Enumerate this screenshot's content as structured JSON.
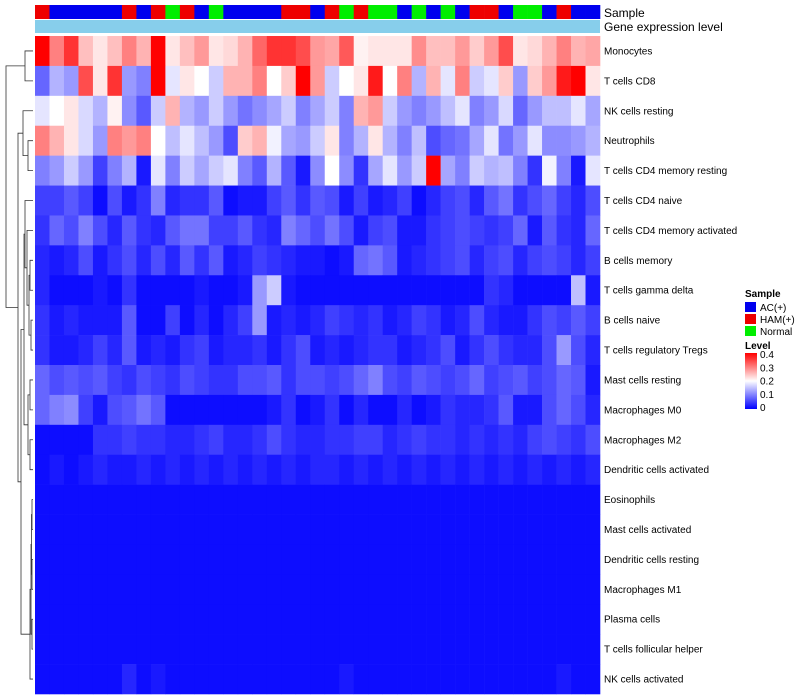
{
  "chart_data": {
    "type": "heatmap",
    "title": "",
    "annotations": {
      "sample_label": "Sample",
      "gene_label": "Gene expression level"
    },
    "samples": [
      "HAM(+)",
      "AC(+)",
      "AC(+)",
      "AC(+)",
      "AC(+)",
      "AC(+)",
      "HAM(+)",
      "AC(+)",
      "HAM(+)",
      "Normal",
      "HAM(+)",
      "AC(+)",
      "Normal",
      "AC(+)",
      "AC(+)",
      "AC(+)",
      "AC(+)",
      "HAM(+)",
      "HAM(+)",
      "AC(+)",
      "HAM(+)",
      "Normal",
      "HAM(+)",
      "Normal",
      "Normal",
      "AC(+)",
      "Normal",
      "AC(+)",
      "Normal",
      "AC(+)",
      "HAM(+)",
      "HAM(+)",
      "AC(+)",
      "Normal",
      "Normal",
      "AC(+)",
      "HAM(+)",
      "AC(+)",
      "AC(+)"
    ],
    "rows": [
      "Monocytes",
      "T cells CD8",
      "NK cells resting",
      "Neutrophils",
      "T cells CD4 memory resting",
      "T cells CD4 naive",
      "T cells CD4 memory activated",
      "B cells memory",
      "T cells gamma delta",
      "B cells naive",
      "T cells regulatory  Tregs",
      "Mast cells resting",
      "Macrophages M0",
      "Macrophages M2",
      "Dendritic cells activated",
      "Eosinophils",
      "Mast cells activated",
      "Dendritic cells resting",
      "Macrophages M1",
      "Plasma cells",
      "T cells follicular helper",
      "NK cells activated"
    ],
    "values": [
      [
        0.4,
        0.3,
        0.36,
        0.25,
        0.22,
        0.25,
        0.3,
        0.26,
        0.4,
        0.22,
        0.25,
        0.28,
        0.22,
        0.23,
        0.26,
        0.32,
        0.36,
        0.36,
        0.34,
        0.28,
        0.27,
        0.33,
        0.21,
        0.22,
        0.22,
        0.22,
        0.29,
        0.25,
        0.25,
        0.28,
        0.24,
        0.28,
        0.34,
        0.22,
        0.23,
        0.26,
        0.3,
        0.26,
        0.27
      ],
      [
        0.08,
        0.14,
        0.12,
        0.34,
        0.22,
        0.36,
        0.12,
        0.1,
        0.4,
        0.18,
        0.22,
        0.2,
        0.16,
        0.26,
        0.26,
        0.3,
        0.2,
        0.24,
        0.42,
        0.28,
        0.16,
        0.2,
        0.22,
        0.38,
        0.2,
        0.3,
        0.14,
        0.26,
        0.18,
        0.3,
        0.16,
        0.18,
        0.24,
        0.12,
        0.24,
        0.28,
        0.38,
        0.42,
        0.22
      ],
      [
        0.18,
        0.2,
        0.22,
        0.17,
        0.14,
        0.21,
        0.11,
        0.07,
        0.16,
        0.26,
        0.14,
        0.12,
        0.16,
        0.12,
        0.09,
        0.11,
        0.13,
        0.16,
        0.1,
        0.13,
        0.16,
        0.1,
        0.26,
        0.28,
        0.16,
        0.12,
        0.1,
        0.12,
        0.15,
        0.18,
        0.1,
        0.12,
        0.17,
        0.08,
        0.12,
        0.15,
        0.15,
        0.18,
        0.13
      ],
      [
        0.3,
        0.26,
        0.22,
        0.17,
        0.12,
        0.3,
        0.28,
        0.3,
        0.2,
        0.15,
        0.18,
        0.15,
        0.12,
        0.06,
        0.24,
        0.26,
        0.19,
        0.13,
        0.12,
        0.16,
        0.22,
        0.1,
        0.14,
        0.22,
        0.14,
        0.1,
        0.15,
        0.06,
        0.08,
        0.09,
        0.13,
        0.18,
        0.09,
        0.12,
        0.18,
        0.11,
        0.11,
        0.12,
        0.14
      ],
      [
        0.1,
        0.12,
        0.16,
        0.12,
        0.05,
        0.1,
        0.14,
        0.02,
        0.18,
        0.1,
        0.16,
        0.13,
        0.16,
        0.18,
        0.1,
        0.07,
        0.14,
        0.07,
        0.02,
        0.11,
        0.2,
        0.11,
        0.04,
        0.13,
        0.18,
        0.12,
        0.16,
        0.4,
        0.13,
        0.1,
        0.16,
        0.14,
        0.15,
        0.1,
        0.04,
        0.19,
        0.1,
        0.02,
        0.18
      ],
      [
        0.05,
        0.05,
        0.07,
        0.05,
        0.01,
        0.06,
        0.02,
        0.04,
        0.1,
        0.03,
        0.04,
        0.04,
        0.07,
        0.01,
        0.02,
        0.02,
        0.05,
        0.07,
        0.04,
        0.07,
        0.06,
        0.02,
        0.05,
        0.02,
        0.03,
        0.05,
        0.01,
        0.03,
        0.05,
        0.06,
        0.03,
        0.07,
        0.09,
        0.04,
        0.06,
        0.08,
        0.05,
        0.03,
        0.06
      ],
      [
        0.04,
        0.08,
        0.06,
        0.1,
        0.06,
        0.03,
        0.07,
        0.04,
        0.03,
        0.07,
        0.09,
        0.09,
        0.05,
        0.05,
        0.07,
        0.04,
        0.03,
        0.1,
        0.08,
        0.06,
        0.09,
        0.06,
        0.02,
        0.05,
        0.06,
        0.02,
        0.02,
        0.04,
        0.05,
        0.06,
        0.05,
        0.04,
        0.05,
        0.08,
        0.02,
        0.07,
        0.04,
        0.03,
        0.08
      ],
      [
        0.03,
        0.02,
        0.03,
        0.06,
        0.02,
        0.04,
        0.06,
        0.03,
        0.06,
        0.03,
        0.07,
        0.04,
        0.07,
        0.02,
        0.03,
        0.05,
        0.04,
        0.03,
        0.02,
        0.02,
        0.01,
        0.02,
        0.08,
        0.09,
        0.07,
        0.02,
        0.03,
        0.04,
        0.05,
        0.06,
        0.03,
        0.05,
        0.06,
        0.03,
        0.05,
        0.06,
        0.05,
        0.03,
        0.05
      ],
      [
        0.03,
        0.01,
        0.01,
        0.01,
        0.02,
        0.01,
        0.04,
        0.01,
        0.01,
        0.01,
        0.01,
        0.02,
        0.01,
        0.01,
        0.02,
        0.12,
        0.16,
        0.02,
        0.01,
        0.01,
        0.01,
        0.01,
        0.01,
        0.01,
        0.01,
        0.01,
        0.01,
        0.01,
        0.01,
        0.01,
        0.01,
        0.04,
        0.03,
        0.01,
        0.01,
        0.01,
        0.01,
        0.15,
        0.02
      ],
      [
        0.04,
        0.02,
        0.03,
        0.02,
        0.02,
        0.02,
        0.07,
        0.01,
        0.01,
        0.05,
        0.01,
        0.03,
        0.01,
        0.03,
        0.05,
        0.12,
        0.02,
        0.03,
        0.02,
        0.03,
        0.05,
        0.04,
        0.03,
        0.04,
        0.02,
        0.03,
        0.05,
        0.04,
        0.02,
        0.03,
        0.06,
        0.03,
        0.02,
        0.02,
        0.04,
        0.06,
        0.05,
        0.07,
        0.05
      ],
      [
        0.04,
        0.02,
        0.02,
        0.03,
        0.05,
        0.03,
        0.07,
        0.02,
        0.03,
        0.02,
        0.04,
        0.05,
        0.02,
        0.03,
        0.03,
        0.04,
        0.02,
        0.04,
        0.06,
        0.02,
        0.03,
        0.02,
        0.03,
        0.04,
        0.04,
        0.02,
        0.03,
        0.04,
        0.06,
        0.02,
        0.04,
        0.06,
        0.04,
        0.03,
        0.03,
        0.06,
        0.12,
        0.06,
        0.03
      ],
      [
        0.08,
        0.06,
        0.07,
        0.06,
        0.07,
        0.05,
        0.04,
        0.06,
        0.05,
        0.04,
        0.06,
        0.05,
        0.04,
        0.04,
        0.06,
        0.06,
        0.07,
        0.04,
        0.06,
        0.06,
        0.05,
        0.06,
        0.08,
        0.1,
        0.06,
        0.05,
        0.07,
        0.06,
        0.05,
        0.06,
        0.08,
        0.05,
        0.06,
        0.07,
        0.05,
        0.06,
        0.08,
        0.07,
        0.02
      ],
      [
        0.08,
        0.1,
        0.11,
        0.05,
        0.02,
        0.06,
        0.07,
        0.09,
        0.07,
        0.01,
        0.01,
        0.01,
        0.01,
        0.01,
        0.01,
        0.01,
        0.02,
        0.04,
        0.01,
        0.02,
        0.04,
        0.01,
        0.03,
        0.01,
        0.01,
        0.03,
        0.01,
        0.02,
        0.04,
        0.03,
        0.03,
        0.04,
        0.07,
        0.02,
        0.02,
        0.06,
        0.08,
        0.06,
        0.03
      ],
      [
        0.01,
        0.01,
        0.01,
        0.01,
        0.04,
        0.04,
        0.05,
        0.04,
        0.04,
        0.03,
        0.03,
        0.04,
        0.05,
        0.03,
        0.03,
        0.04,
        0.06,
        0.04,
        0.03,
        0.03,
        0.04,
        0.04,
        0.05,
        0.05,
        0.03,
        0.04,
        0.05,
        0.04,
        0.04,
        0.03,
        0.04,
        0.03,
        0.04,
        0.03,
        0.05,
        0.06,
        0.05,
        0.04,
        0.06
      ],
      [
        0.01,
        0.02,
        0.01,
        0.02,
        0.03,
        0.02,
        0.02,
        0.03,
        0.02,
        0.03,
        0.02,
        0.03,
        0.02,
        0.03,
        0.02,
        0.03,
        0.02,
        0.03,
        0.02,
        0.03,
        0.03,
        0.02,
        0.03,
        0.02,
        0.03,
        0.02,
        0.03,
        0.02,
        0.03,
        0.02,
        0.03,
        0.02,
        0.03,
        0.02,
        0.03,
        0.02,
        0.03,
        0.02,
        0.03
      ],
      [
        0.01,
        0.01,
        0.01,
        0.01,
        0.01,
        0.01,
        0.01,
        0.01,
        0.01,
        0.01,
        0.01,
        0.01,
        0.01,
        0.01,
        0.01,
        0.01,
        0.01,
        0.01,
        0.01,
        0.01,
        0.01,
        0.01,
        0.01,
        0.01,
        0.01,
        0.01,
        0.01,
        0.01,
        0.01,
        0.01,
        0.01,
        0.01,
        0.01,
        0.01,
        0.01,
        0.01,
        0.01,
        0.01,
        0.01
      ],
      [
        0.01,
        0.01,
        0.01,
        0.01,
        0.01,
        0.01,
        0.01,
        0.01,
        0.01,
        0.01,
        0.01,
        0.01,
        0.01,
        0.01,
        0.01,
        0.01,
        0.01,
        0.01,
        0.01,
        0.01,
        0.01,
        0.01,
        0.01,
        0.01,
        0.01,
        0.01,
        0.01,
        0.01,
        0.01,
        0.01,
        0.01,
        0.01,
        0.01,
        0.01,
        0.01,
        0.01,
        0.01,
        0.01,
        0.01
      ],
      [
        0.01,
        0.01,
        0.01,
        0.01,
        0.01,
        0.01,
        0.01,
        0.01,
        0.01,
        0.01,
        0.01,
        0.01,
        0.01,
        0.01,
        0.01,
        0.01,
        0.01,
        0.01,
        0.01,
        0.01,
        0.01,
        0.01,
        0.01,
        0.01,
        0.01,
        0.01,
        0.01,
        0.01,
        0.01,
        0.01,
        0.01,
        0.01,
        0.01,
        0.01,
        0.01,
        0.01,
        0.01,
        0.01,
        0.01
      ],
      [
        0.01,
        0.01,
        0.01,
        0.01,
        0.01,
        0.01,
        0.01,
        0.01,
        0.01,
        0.01,
        0.01,
        0.01,
        0.01,
        0.01,
        0.01,
        0.01,
        0.01,
        0.01,
        0.01,
        0.01,
        0.01,
        0.01,
        0.01,
        0.01,
        0.01,
        0.01,
        0.01,
        0.01,
        0.01,
        0.01,
        0.01,
        0.01,
        0.01,
        0.01,
        0.01,
        0.01,
        0.01,
        0.01,
        0.01
      ],
      [
        0.01,
        0.01,
        0.01,
        0.01,
        0.01,
        0.01,
        0.01,
        0.01,
        0.01,
        0.01,
        0.01,
        0.01,
        0.01,
        0.01,
        0.01,
        0.01,
        0.01,
        0.01,
        0.01,
        0.01,
        0.01,
        0.01,
        0.01,
        0.01,
        0.01,
        0.01,
        0.01,
        0.01,
        0.01,
        0.01,
        0.01,
        0.01,
        0.01,
        0.01,
        0.01,
        0.01,
        0.01,
        0.01,
        0.01
      ],
      [
        0.01,
        0.01,
        0.01,
        0.01,
        0.01,
        0.01,
        0.01,
        0.01,
        0.01,
        0.01,
        0.01,
        0.01,
        0.01,
        0.01,
        0.01,
        0.01,
        0.01,
        0.01,
        0.01,
        0.01,
        0.01,
        0.01,
        0.01,
        0.01,
        0.01,
        0.01,
        0.01,
        0.01,
        0.01,
        0.01,
        0.01,
        0.01,
        0.01,
        0.01,
        0.01,
        0.01,
        0.01,
        0.01,
        0.01
      ],
      [
        0.01,
        0.01,
        0.01,
        0.01,
        0.01,
        0.01,
        0.03,
        0.01,
        0.02,
        0.01,
        0.01,
        0.01,
        0.01,
        0.01,
        0.01,
        0.01,
        0.01,
        0.01,
        0.01,
        0.01,
        0.01,
        0.02,
        0.01,
        0.01,
        0.01,
        0.01,
        0.01,
        0.01,
        0.01,
        0.01,
        0.01,
        0.01,
        0.01,
        0.01,
        0.01,
        0.01,
        0.02,
        0.01,
        0.01
      ]
    ],
    "legend": {
      "sample_title": "Sample",
      "sample_entries": [
        {
          "label": "AC(+)",
          "color": "#0000ee"
        },
        {
          "label": "HAM(+)",
          "color": "#ee0000"
        },
        {
          "label": "Normal",
          "color": "#00ee00"
        }
      ],
      "level_title": "Level",
      "level_ticks": [
        "0.4",
        "0.3",
        "0.2",
        "0.1",
        "0"
      ],
      "level_range": [
        0,
        0.4
      ],
      "placement": "right"
    },
    "colors": {
      "low": "#0000ff",
      "mid": "#ffffff",
      "high": "#ff0000",
      "gene_bar": "#87ceeb"
    }
  }
}
